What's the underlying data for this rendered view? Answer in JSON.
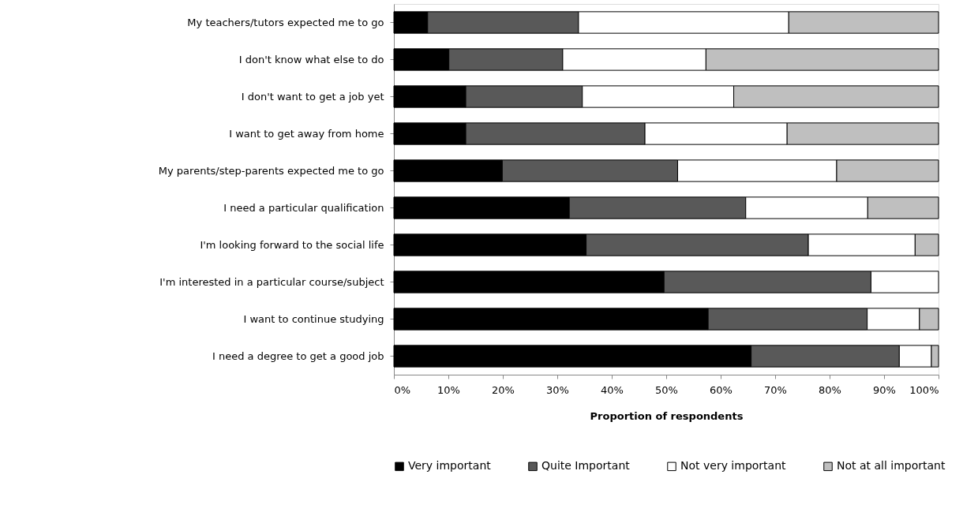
{
  "chart_data": {
    "type": "bar",
    "orientation": "horizontal",
    "stacked": true,
    "categories": [
      "My teachers/tutors expected me to go",
      "I don't know what else to do",
      "I don't want to get a job yet",
      "I want to get away from home",
      "My parents/step-parents expected me to go",
      "I need a particular qualification",
      "I'm looking forward to the social life",
      "I'm interested in a particular course/subject",
      "I want to continue studying",
      "I need a degree to get a good job"
    ],
    "series": [
      {
        "name": "Very important",
        "color": "#000000",
        "values": [
          6.2,
          10.1,
          13.2,
          13.2,
          19.9,
          32.2,
          35.3,
          49.6,
          57.7,
          65.6
        ]
      },
      {
        "name": "Quite Important",
        "color": "#595959",
        "values": [
          27.7,
          20.9,
          21.4,
          32.9,
          32.2,
          32.4,
          40.8,
          38.0,
          29.2,
          27.2
        ]
      },
      {
        "name": "Not very important",
        "color": "#ffffff",
        "values": [
          38.6,
          26.3,
          27.8,
          26.1,
          29.2,
          22.4,
          19.6,
          12.4,
          9.6,
          5.9
        ]
      },
      {
        "name": "Not at all important",
        "color": "#bfbfbf",
        "values": [
          27.5,
          42.7,
          37.6,
          27.8,
          18.7,
          13.0,
          4.3,
          0,
          3.5,
          1.3
        ]
      }
    ],
    "xlabel": "Proportion of respondents",
    "xlim": [
      0,
      100
    ],
    "xticks": [
      {
        "value": 0,
        "label": "0%"
      },
      {
        "value": 10,
        "label": "10%"
      },
      {
        "value": 20,
        "label": "20%"
      },
      {
        "value": 30,
        "label": "30%"
      },
      {
        "value": 40,
        "label": "40%"
      },
      {
        "value": 50,
        "label": "50%"
      },
      {
        "value": 60,
        "label": "60%"
      },
      {
        "value": 70,
        "label": "70%"
      },
      {
        "value": 80,
        "label": "80%"
      },
      {
        "value": 90,
        "label": "90%"
      },
      {
        "value": 100,
        "label": "100%"
      }
    ],
    "grid": false,
    "legend": "bottom"
  }
}
